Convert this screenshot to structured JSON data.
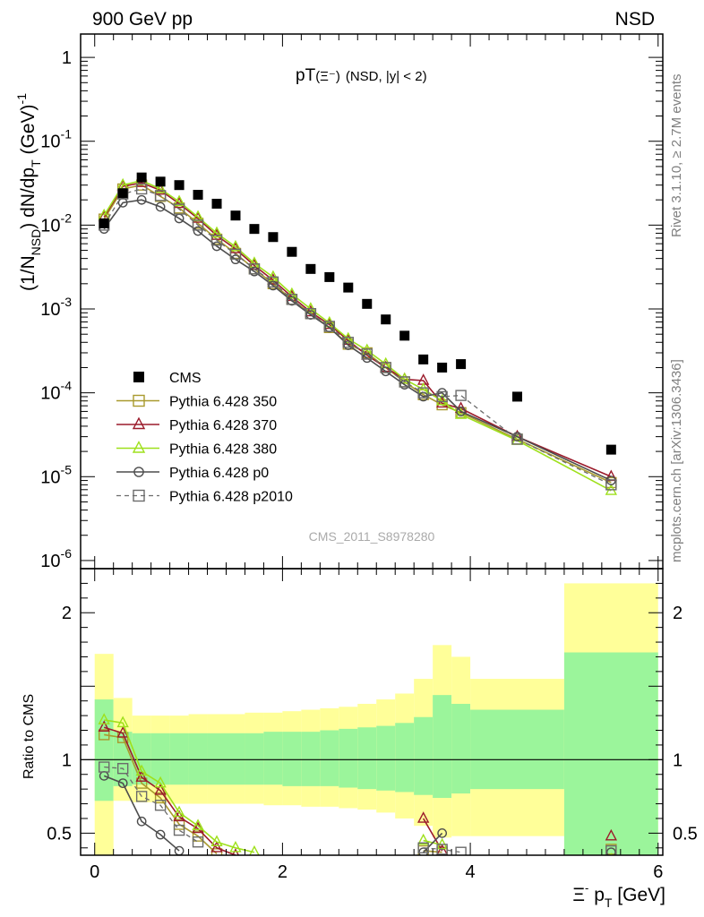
{
  "header": {
    "energy_label": "900 GeV pp",
    "process_label": "NSD",
    "rivet_label": "Rivet 3.1.10, ≥ 2.7M events",
    "site_label": "mcplots.cern.ch [arXiv:1306.3436]",
    "analysis_label": "CMS_2011_S8978280"
  },
  "chart_data": [
    {
      "type": "scatter",
      "title": "pT(Ξ⁻) (NSD, |y| < 2)",
      "title_main": "pT",
      "title_particle": "(Ξ⁻)",
      "title_cuts": "(NSD, |y| < 2)",
      "xlabel": "Ξ⁻ p_T [GeV]",
      "ylabel": "(1/N_NSD) dN/dp_T (GeV)^-1",
      "ylabel_parts": {
        "pre": "(1/N",
        "sub1": "NSD",
        "mid": ") dN/dp",
        "sub2": "T",
        "post": " (GeV)",
        "sup": "-1"
      },
      "xlabel_parts": {
        "sym": "Ξ",
        "sup": "-",
        "p": " p",
        "sub": "T",
        "unit": " [GeV]"
      },
      "xlim": [
        -0.15,
        6.05
      ],
      "ylim": [
        8e-07,
        1.9
      ],
      "log_y": true,
      "x_ticks": [
        "0",
        "2",
        "4",
        "6"
      ],
      "y_ticks": [
        {
          "value": 1,
          "label": "1"
        },
        {
          "value": 0.1,
          "label": "10",
          "exp": "-1"
        },
        {
          "value": 0.01,
          "label": "10",
          "exp": "-2"
        },
        {
          "value": 0.001,
          "label": "10",
          "exp": "-3"
        },
        {
          "value": 0.0001,
          "label": "10",
          "exp": "-4"
        },
        {
          "value": 1e-05,
          "label": "10",
          "exp": "-5"
        },
        {
          "value": 1e-06,
          "label": "10",
          "exp": "-6"
        }
      ],
      "legend_position": "bottom-left",
      "series": [
        {
          "name": "CMS",
          "color": "#000000",
          "marker": "filled-square",
          "line": "none",
          "x": [
            0.1,
            0.3,
            0.5,
            0.7,
            0.9,
            1.1,
            1.3,
            1.5,
            1.7,
            1.9,
            2.1,
            2.3,
            2.5,
            2.7,
            2.9,
            3.1,
            3.3,
            3.5,
            3.7,
            3.9,
            4.5,
            5.5
          ],
          "y": [
            0.0105,
            0.024,
            0.037,
            0.033,
            0.03,
            0.023,
            0.018,
            0.013,
            0.009,
            0.0072,
            0.0048,
            0.003,
            0.0024,
            0.0018,
            0.00115,
            0.00075,
            0.00048,
            0.00025,
            0.0002,
            0.00022,
            9e-05,
            2.1e-05
          ]
        },
        {
          "name": "Pythia 6.428 350",
          "color": "#a99a2e",
          "marker": "open-square",
          "line": "solid",
          "x": [
            0.1,
            0.3,
            0.5,
            0.7,
            0.9,
            1.1,
            1.3,
            1.5,
            1.7,
            1.9,
            2.1,
            2.3,
            2.5,
            2.7,
            2.9,
            3.1,
            3.3,
            3.5,
            3.7,
            3.9,
            4.5,
            5.5
          ],
          "y": [
            0.0118,
            0.027,
            0.03,
            0.022,
            0.016,
            0.0105,
            0.0068,
            0.0046,
            0.003,
            0.002,
            0.0013,
            0.00088,
            0.0006,
            0.00038,
            0.0003,
            0.0002,
            0.000135,
            9.5e-05,
            7.2e-05,
            5.8e-05,
            2.8e-05,
            8.5e-06
          ]
        },
        {
          "name": "Pythia 6.428 370",
          "color": "#9b1b2b",
          "marker": "open-triangle",
          "line": "solid",
          "x": [
            0.1,
            0.3,
            0.5,
            0.7,
            0.9,
            1.1,
            1.3,
            1.5,
            1.7,
            1.9,
            2.1,
            2.3,
            2.5,
            2.7,
            2.9,
            3.1,
            3.3,
            3.5,
            3.7,
            3.9,
            4.5,
            5.5
          ],
          "y": [
            0.0125,
            0.029,
            0.032,
            0.026,
            0.018,
            0.012,
            0.0075,
            0.0052,
            0.0033,
            0.0022,
            0.0014,
            0.00092,
            0.00065,
            0.00042,
            0.00028,
            0.0002,
            0.000145,
            0.00014,
            7.5e-05,
            6.5e-05,
            3e-05,
            1e-05
          ]
        },
        {
          "name": "Pythia 6.428 380",
          "color": "#9ee01b",
          "marker": "open-triangle",
          "line": "solid",
          "x": [
            0.1,
            0.3,
            0.5,
            0.7,
            0.9,
            1.1,
            1.3,
            1.5,
            1.7,
            1.9,
            2.1,
            2.3,
            2.5,
            2.7,
            2.9,
            3.1,
            3.3,
            3.5,
            3.7,
            3.9,
            4.5,
            5.5
          ],
          "y": [
            0.013,
            0.03,
            0.034,
            0.027,
            0.019,
            0.0125,
            0.008,
            0.0055,
            0.0035,
            0.0024,
            0.0015,
            0.001,
            0.00068,
            0.00044,
            0.00032,
            0.00022,
            0.000145,
            0.00011,
            8e-05,
            5.5e-05,
            2.7e-05,
            6.8e-06
          ]
        },
        {
          "name": "Pythia 6.428 p0",
          "color": "#4d4d4d",
          "marker": "open-circle",
          "line": "solid",
          "x": [
            0.1,
            0.3,
            0.5,
            0.7,
            0.9,
            1.1,
            1.3,
            1.5,
            1.7,
            1.9,
            2.1,
            2.3,
            2.5,
            2.7,
            2.9,
            3.1,
            3.3,
            3.5,
            3.7,
            3.9,
            4.5,
            5.5
          ],
          "y": [
            0.009,
            0.0185,
            0.02,
            0.0165,
            0.012,
            0.0085,
            0.0056,
            0.0039,
            0.0028,
            0.0019,
            0.00125,
            0.00085,
            0.0006,
            0.00037,
            0.00026,
            0.00018,
            0.000125,
            9e-05,
            0.0001,
            6e-05,
            3e-05,
            9e-06
          ]
        },
        {
          "name": "Pythia 6.428 p2010",
          "color": "#6b6b6b",
          "marker": "open-square",
          "line": "dashed",
          "x": [
            0.1,
            0.3,
            0.5,
            0.7,
            0.9,
            1.1,
            1.3,
            1.5,
            1.7,
            1.9,
            2.1,
            2.3,
            2.5,
            2.7,
            2.9,
            3.1,
            3.3,
            3.5,
            3.7,
            3.9,
            4.5,
            5.5
          ],
          "y": [
            0.01,
            0.0235,
            0.027,
            0.0225,
            0.0155,
            0.01,
            0.0066,
            0.0045,
            0.003,
            0.0021,
            0.0013,
            0.00088,
            0.00062,
            0.0004,
            0.00029,
            0.0002,
            0.000135,
            0.0001,
            9e-05,
            9.3e-05,
            2.8e-05,
            8e-06
          ]
        }
      ]
    },
    {
      "type": "scatter",
      "ylabel": "Ratio to CMS",
      "xlim": [
        -0.15,
        6.05
      ],
      "ylim": [
        0.35,
        2.3
      ],
      "y_ticks": [
        {
          "value": 0.5,
          "label": "0.5"
        },
        {
          "value": 1,
          "label": "1"
        },
        {
          "value": 2,
          "label": "2"
        }
      ],
      "reference_line": 1,
      "bands": {
        "x_edges": [
          0.0,
          0.2,
          0.4,
          0.6,
          0.8,
          1.0,
          1.2,
          1.4,
          1.6,
          1.8,
          2.0,
          2.2,
          2.4,
          2.6,
          2.8,
          3.0,
          3.2,
          3.4,
          3.6,
          3.8,
          4.0,
          5.0,
          6.0
        ],
        "stat_lo": [
          0.72,
          0.82,
          0.83,
          0.83,
          0.83,
          0.83,
          0.83,
          0.83,
          0.83,
          0.83,
          0.82,
          0.82,
          0.82,
          0.81,
          0.8,
          0.79,
          0.78,
          0.76,
          0.74,
          0.77,
          0.8,
          0.35
        ],
        "stat_hi": [
          1.41,
          1.19,
          1.18,
          1.18,
          1.18,
          1.18,
          1.18,
          1.18,
          1.18,
          1.19,
          1.19,
          1.19,
          1.2,
          1.21,
          1.22,
          1.23,
          1.25,
          1.29,
          1.44,
          1.38,
          1.34,
          1.73
        ],
        "syst_lo": [
          0.35,
          0.72,
          0.71,
          0.71,
          0.7,
          0.7,
          0.7,
          0.7,
          0.7,
          0.69,
          0.69,
          0.68,
          0.68,
          0.67,
          0.66,
          0.64,
          0.6,
          0.55,
          0.47,
          0.48,
          0.48,
          0.35
        ],
        "syst_hi": [
          1.72,
          1.42,
          1.3,
          1.3,
          1.3,
          1.31,
          1.31,
          1.31,
          1.32,
          1.32,
          1.33,
          1.34,
          1.35,
          1.36,
          1.38,
          1.41,
          1.45,
          1.55,
          1.78,
          1.7,
          1.55,
          2.2
        ],
        "stat_color": "#9bf59b",
        "syst_color": "#ffff99"
      },
      "series": [
        {
          "name": "Pythia 6.428 350",
          "color": "#a99a2e",
          "marker": "open-square",
          "line": "solid",
          "x": [
            0.1,
            0.3,
            0.5,
            0.7,
            0.9,
            1.1,
            1.3,
            3.5,
            3.7,
            5.5
          ],
          "y": [
            1.17,
            1.15,
            0.84,
            0.74,
            0.56,
            0.48,
            0.36,
            0.38,
            0.37,
            0.39
          ]
        },
        {
          "name": "Pythia 6.428 370",
          "color": "#9b1b2b",
          "marker": "open-triangle",
          "line": "solid",
          "x": [
            0.1,
            0.3,
            0.5,
            0.7,
            0.9,
            1.1,
            1.3,
            1.5,
            3.5,
            3.7,
            5.5
          ],
          "y": [
            1.22,
            1.18,
            0.88,
            0.79,
            0.61,
            0.53,
            0.4,
            0.35,
            0.6,
            0.38,
            0.48
          ]
        },
        {
          "name": "Pythia 6.428 380",
          "color": "#9ee01b",
          "marker": "open-triangle",
          "line": "solid",
          "x": [
            0.1,
            0.3,
            0.5,
            0.7,
            0.9,
            1.1,
            1.3,
            1.5,
            1.7,
            3.5,
            3.7,
            5.5
          ],
          "y": [
            1.27,
            1.25,
            0.92,
            0.84,
            0.64,
            0.55,
            0.44,
            0.4,
            0.37,
            0.45,
            0.42,
            0.32
          ]
        },
        {
          "name": "Pythia 6.428 p0",
          "color": "#4d4d4d",
          "marker": "open-circle",
          "line": "solid",
          "x": [
            0.1,
            0.3,
            0.5,
            0.7,
            0.9,
            3.5,
            3.7,
            5.5
          ],
          "y": [
            0.89,
            0.84,
            0.58,
            0.49,
            0.38,
            0.37,
            0.5,
            0.37
          ]
        },
        {
          "name": "Pythia 6.428 p2010",
          "color": "#6b6b6b",
          "marker": "open-square",
          "line": "dashed",
          "x": [
            0.1,
            0.3,
            0.5,
            0.7,
            0.9,
            1.1,
            3.5,
            3.7,
            3.9,
            5.5
          ],
          "y": [
            0.95,
            0.94,
            0.75,
            0.69,
            0.52,
            0.44,
            0.4,
            0.39,
            0.37,
            0.38
          ]
        }
      ]
    }
  ]
}
